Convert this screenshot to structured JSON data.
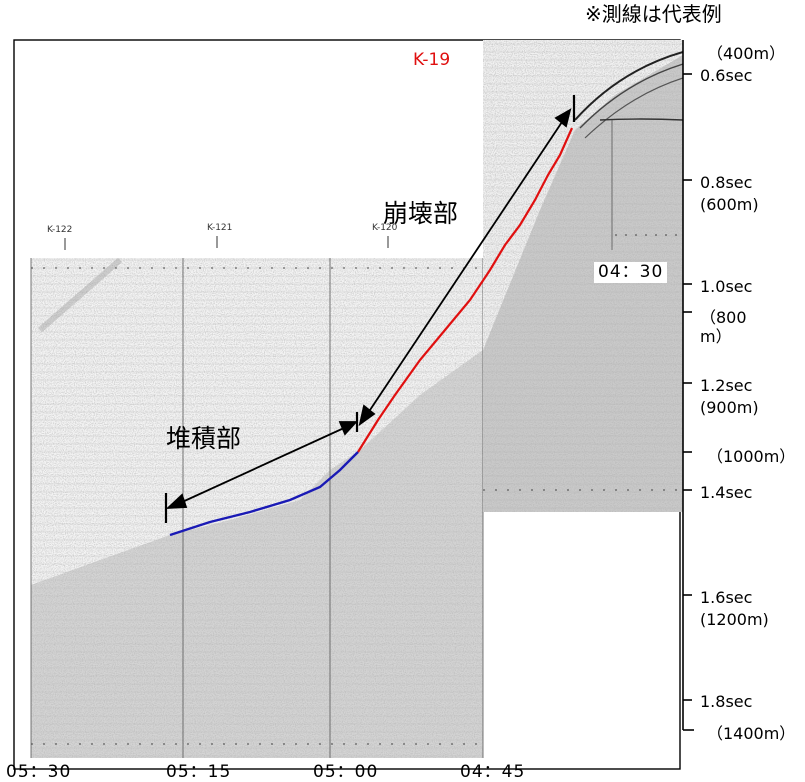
{
  "note": "※測線は代表例",
  "track_label": "K-19",
  "styles": {
    "track_color": "color:#e01010",
    "collapse_line_color": "#e01010",
    "deposition_line_color": "#1a1ab5"
  },
  "line_labels": [
    "K-122",
    "K-121",
    "K-120"
  ],
  "labels": {
    "collapse": "崩壊部",
    "deposition": "堆積部"
  },
  "time_labels": [
    "05：30",
    "05：15",
    "05：00",
    "04：45",
    "04：30"
  ],
  "scale": [
    "（400m）",
    "0.6sec",
    "0.8sec",
    "(600m)",
    "1.0sec",
    "（800 m）",
    "1.2sec",
    "(900m)",
    "（1000m）",
    "1.4sec",
    "1.6sec",
    "(1200m)",
    "1.8sec",
    "（1400m）"
  ]
}
